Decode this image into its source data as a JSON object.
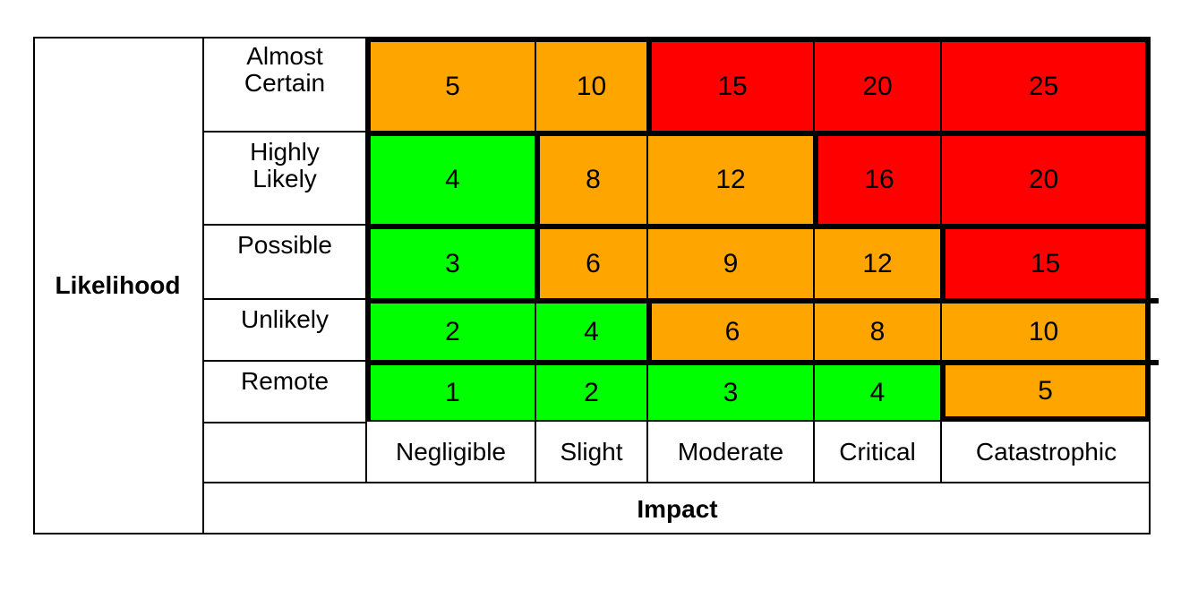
{
  "colors": {
    "green": "#00FF00",
    "orange": "#FFA500",
    "red": "#FF0000",
    "grid_line": "#000000",
    "background": "#FFFFFF"
  },
  "chart_data": {
    "type": "heatmap",
    "xlabel": "Impact",
    "ylabel": "Likelihood",
    "x_categories": [
      "Negligible",
      "Slight",
      "Moderate",
      "Critical",
      "Catastrophic"
    ],
    "y_categories": [
      "Almost Certain",
      "Highly Likely",
      "Possible",
      "Unlikely",
      "Remote"
    ],
    "values": [
      [
        5,
        10,
        15,
        20,
        25
      ],
      [
        4,
        8,
        12,
        16,
        20
      ],
      [
        3,
        6,
        9,
        12,
        15
      ],
      [
        2,
        4,
        6,
        8,
        10
      ],
      [
        1,
        2,
        3,
        4,
        5
      ]
    ],
    "cell_colors": [
      [
        "orange",
        "orange",
        "red",
        "red",
        "red"
      ],
      [
        "green",
        "orange",
        "orange",
        "red",
        "red"
      ],
      [
        "green",
        "orange",
        "orange",
        "orange",
        "red"
      ],
      [
        "green",
        "green",
        "orange",
        "orange",
        "orange"
      ],
      [
        "green",
        "green",
        "green",
        "green",
        "orange"
      ]
    ],
    "value_range": [
      1,
      25
    ],
    "layout_hints": {
      "y_labels_position": "left",
      "x_labels_position": "bottom",
      "legend": "none",
      "thick_lines": "row boundaries and risk-zone color boundaries"
    }
  }
}
